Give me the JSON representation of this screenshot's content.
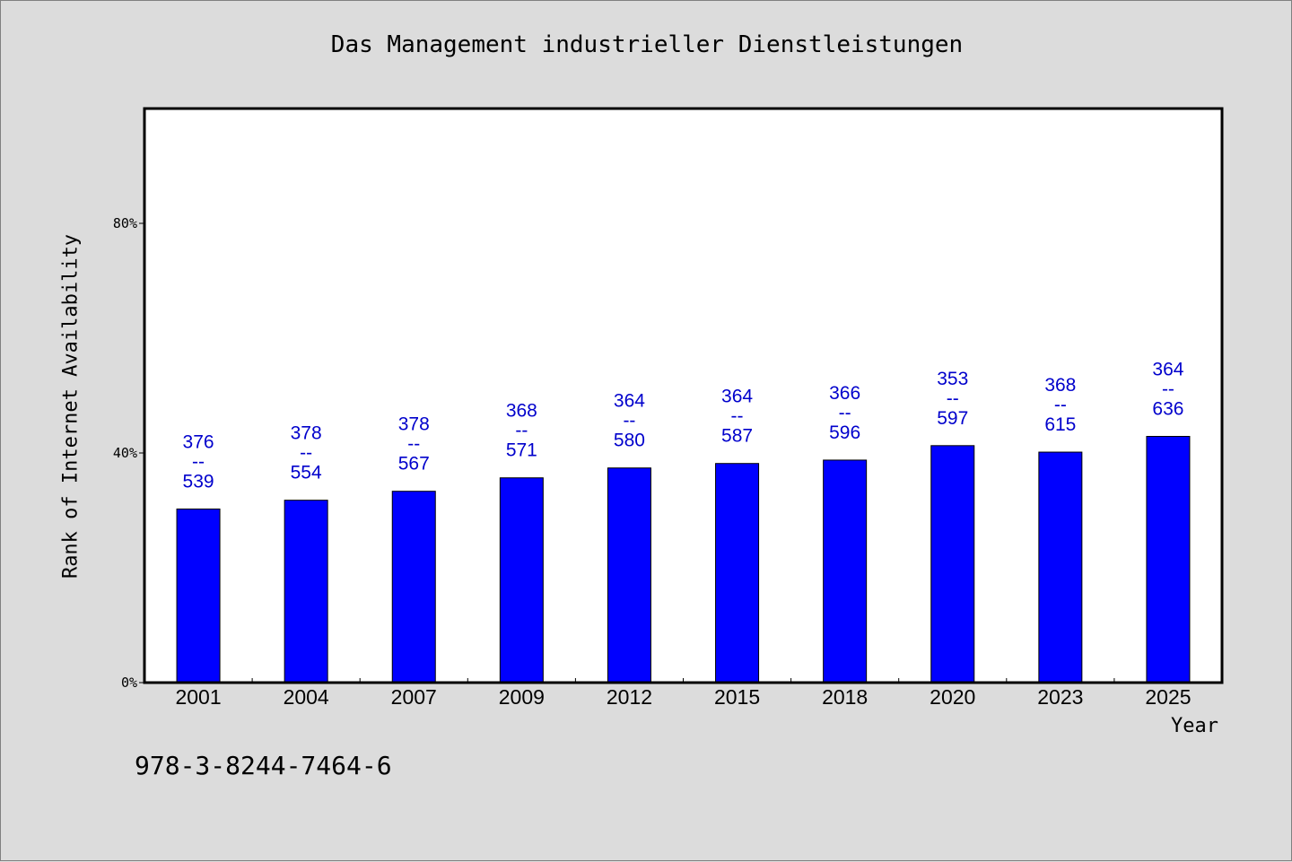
{
  "chart_title": "Das Management industrieller Dienstleistungen",
  "footer_code": "978-3-8244-7464-6",
  "colors": {
    "bar": "#0000ff",
    "label": "#0000cc",
    "background": "#dcdcdc",
    "plot_bg": "#ffffff"
  },
  "chart_data": {
    "type": "bar",
    "title": "Das Management industrieller Dienstleistungen",
    "xlabel": "Year",
    "ylabel": "Rank of Internet Availability",
    "categories": [
      "2001",
      "2004",
      "2007",
      "2009",
      "2012",
      "2015",
      "2018",
      "2020",
      "2023",
      "2025"
    ],
    "values": [
      0.3024,
      0.3177,
      0.3333,
      0.3567,
      0.3739,
      0.3817,
      0.3876,
      0.4128,
      0.4015,
      0.4289
    ],
    "value_format": "fraction of 1 (0.40 = 40%)",
    "bar_labels": [
      {
        "top": "376",
        "sep": "--",
        "bottom": "539"
      },
      {
        "top": "378",
        "sep": "--",
        "bottom": "554"
      },
      {
        "top": "378",
        "sep": "--",
        "bottom": "567"
      },
      {
        "top": "368",
        "sep": "--",
        "bottom": "571"
      },
      {
        "top": "364",
        "sep": "--",
        "bottom": "580"
      },
      {
        "top": "364",
        "sep": "--",
        "bottom": "587"
      },
      {
        "top": "366",
        "sep": "--",
        "bottom": "596"
      },
      {
        "top": "353",
        "sep": "--",
        "bottom": "597"
      },
      {
        "top": "368",
        "sep": "--",
        "bottom": "615"
      },
      {
        "top": "364",
        "sep": "--",
        "bottom": "636"
      }
    ],
    "ylim": [
      0,
      1.0
    ],
    "yticks": [
      0,
      0.4,
      0.8
    ],
    "ytick_labels": [
      "0%",
      "40%",
      "80%"
    ],
    "grid": false,
    "legend": "none"
  }
}
